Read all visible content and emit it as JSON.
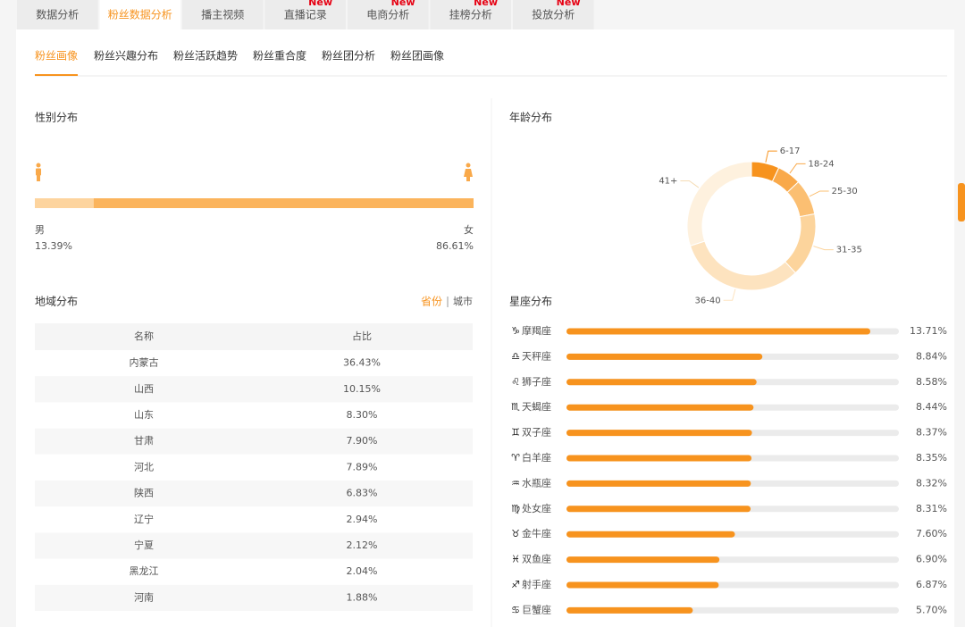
{
  "tabs": [
    {
      "label": "数据分析"
    },
    {
      "label": "粉丝数据分析"
    },
    {
      "label": "播主视频"
    },
    {
      "label": "直播记录",
      "badge": "New"
    },
    {
      "label": "电商分析",
      "badge": "New"
    },
    {
      "label": "挂榜分析",
      "badge": "New"
    },
    {
      "label": "投放分析",
      "badge": "New"
    }
  ],
  "sub_tabs": [
    "粉丝画像",
    "粉丝兴趣分布",
    "粉丝活跃趋势",
    "粉丝重合度",
    "粉丝团分析",
    "粉丝团画像"
  ],
  "gender": {
    "title": "性别分布",
    "male": {
      "label": "男",
      "value": 13.39,
      "value_label": "13.39%",
      "color": "#fdd49e"
    },
    "female": {
      "label": "女",
      "value": 86.61,
      "value_label": "86.61%",
      "color": "#fbb45c"
    }
  },
  "region": {
    "title": "地域分布",
    "toggle": [
      "省份",
      "城市"
    ],
    "columns": [
      "名称",
      "占比"
    ],
    "rows": [
      [
        "内蒙古",
        "36.43%"
      ],
      [
        "山西",
        "10.15%"
      ],
      [
        "山东",
        "8.30%"
      ],
      [
        "甘肃",
        "7.90%"
      ],
      [
        "河北",
        "7.89%"
      ],
      [
        "陕西",
        "6.83%"
      ],
      [
        "辽宁",
        "2.94%"
      ],
      [
        "宁夏",
        "2.12%"
      ],
      [
        "黑龙江",
        "2.04%"
      ],
      [
        "河南",
        "1.88%"
      ]
    ]
  },
  "age_chart": {
    "type": "pie",
    "title": "年龄分布",
    "categories": [
      "6-17",
      "18-24",
      "25-30",
      "31-35",
      "36-40",
      "41+"
    ],
    "values": [
      7,
      6,
      9,
      16,
      32,
      30
    ],
    "colors": [
      "#f7931e",
      "#f9a94a",
      "#fbbf72",
      "#fcd49c",
      "#fde3bf",
      "#fef1de"
    ]
  },
  "zodiac": {
    "type": "bar",
    "title": "星座分布",
    "icons": [
      "♑",
      "♎",
      "♌",
      "♏",
      "♊",
      "♈",
      "♒",
      "♍",
      "♉",
      "♓",
      "♐",
      "♋"
    ],
    "categories": [
      "摩羯座",
      "天秤座",
      "狮子座",
      "天蝎座",
      "双子座",
      "白羊座",
      "水瓶座",
      "处女座",
      "金牛座",
      "双鱼座",
      "射手座",
      "巨蟹座"
    ],
    "values": [
      13.71,
      8.84,
      8.58,
      8.44,
      8.37,
      8.35,
      8.32,
      8.31,
      7.6,
      6.9,
      6.87,
      5.7
    ],
    "value_labels": [
      "13.71%",
      "8.84%",
      "8.58%",
      "8.44%",
      "8.37%",
      "8.35%",
      "8.32%",
      "8.31%",
      "7.60%",
      "6.90%",
      "6.87%",
      "5.70%"
    ],
    "xlim": [
      0,
      15
    ],
    "color": "#f7931e",
    "track_color": "#ebebeb"
  }
}
